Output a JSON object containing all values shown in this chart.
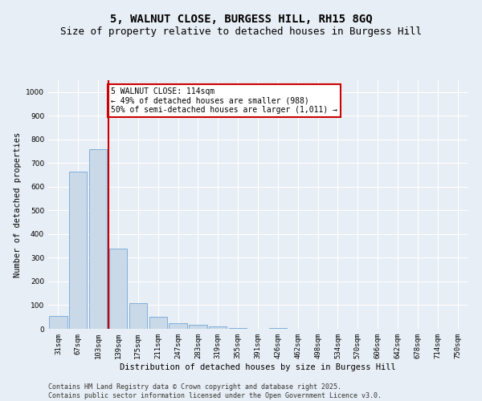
{
  "title": "5, WALNUT CLOSE, BURGESS HILL, RH15 8GQ",
  "subtitle": "Size of property relative to detached houses in Burgess Hill",
  "xlabel": "Distribution of detached houses by size in Burgess Hill",
  "ylabel": "Number of detached properties",
  "categories": [
    "31sqm",
    "67sqm",
    "103sqm",
    "139sqm",
    "175sqm",
    "211sqm",
    "247sqm",
    "283sqm",
    "319sqm",
    "355sqm",
    "391sqm",
    "426sqm",
    "462sqm",
    "498sqm",
    "534sqm",
    "570sqm",
    "606sqm",
    "642sqm",
    "678sqm",
    "714sqm",
    "750sqm"
  ],
  "values": [
    55,
    665,
    760,
    340,
    110,
    50,
    25,
    18,
    10,
    5,
    0,
    2,
    0,
    0,
    0,
    0,
    0,
    0,
    0,
    0,
    0
  ],
  "bar_color": "#c9d9e8",
  "bar_edge_color": "#5b9bd5",
  "vline_x_idx": 2,
  "vline_color": "#cc0000",
  "annotation_text": "5 WALNUT CLOSE: 114sqm\n← 49% of detached houses are smaller (988)\n50% of semi-detached houses are larger (1,011) →",
  "annotation_box_color": "#ffffff",
  "annotation_box_edge": "#cc0000",
  "ylim": [
    0,
    1050
  ],
  "yticks": [
    0,
    100,
    200,
    300,
    400,
    500,
    600,
    700,
    800,
    900,
    1000
  ],
  "footer_line1": "Contains HM Land Registry data © Crown copyright and database right 2025.",
  "footer_line2": "Contains public sector information licensed under the Open Government Licence v3.0.",
  "bg_color": "#e8eef5",
  "plot_bg_color": "#e8eef5",
  "grid_color": "#ffffff",
  "title_fontsize": 10,
  "subtitle_fontsize": 9,
  "axis_label_fontsize": 7.5,
  "tick_fontsize": 6.5,
  "annotation_fontsize": 7,
  "footer_fontsize": 6
}
